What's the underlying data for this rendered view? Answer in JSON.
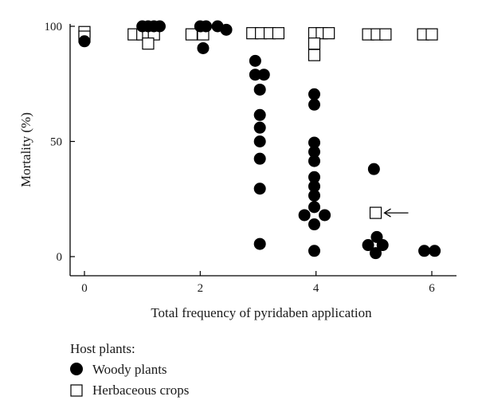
{
  "chart_data": {
    "type": "scatter",
    "title": "",
    "xlabel": "Total frequency of pyridaben application",
    "ylabel": "Mortality (%)",
    "xlim": [
      -0.2,
      6.4
    ],
    "ylim": [
      -8,
      100
    ],
    "xticks": [
      0,
      2,
      4,
      6
    ],
    "yticks": [
      0,
      50,
      100
    ],
    "grid": false,
    "legend": {
      "title": "Host plants:",
      "placement": "bottom-left",
      "entries": [
        "Woody plants",
        "Herbaceous crops"
      ]
    },
    "series": [
      {
        "name": "Woody plants",
        "marker": "filled-circle",
        "color": "#000000",
        "points": [
          [
            0,
            93.5
          ],
          [
            1,
            100
          ],
          [
            1.1,
            100
          ],
          [
            1.2,
            100
          ],
          [
            1.3,
            100
          ],
          [
            2,
            100
          ],
          [
            2.1,
            100
          ],
          [
            2.3,
            100
          ],
          [
            2.45,
            98.5
          ],
          [
            2.05,
            90.5
          ],
          [
            2.95,
            85
          ],
          [
            2.95,
            79
          ],
          [
            3.1,
            79
          ],
          [
            3.03,
            72.5
          ],
          [
            3.03,
            61.5
          ],
          [
            3.03,
            56
          ],
          [
            3.03,
            50
          ],
          [
            3.03,
            42.5
          ],
          [
            3.03,
            29.5
          ],
          [
            3.03,
            5.5
          ],
          [
            3.97,
            70.5
          ],
          [
            3.97,
            66
          ],
          [
            3.97,
            49.5
          ],
          [
            3.97,
            45.5
          ],
          [
            3.97,
            41.5
          ],
          [
            3.97,
            34.5
          ],
          [
            3.97,
            30.5
          ],
          [
            3.97,
            26.5
          ],
          [
            3.97,
            21.5
          ],
          [
            3.8,
            18
          ],
          [
            4.15,
            18
          ],
          [
            3.97,
            14
          ],
          [
            3.97,
            2.5
          ],
          [
            5,
            38
          ],
          [
            4.9,
            5
          ],
          [
            5.05,
            8.5
          ],
          [
            5.15,
            5
          ],
          [
            5.03,
            1.5
          ],
          [
            5.87,
            2.5
          ],
          [
            6.05,
            2.5
          ]
        ]
      },
      {
        "name": "Herbaceous crops",
        "marker": "open-square",
        "color": "#000000",
        "points": [
          [
            0,
            97.5
          ],
          [
            0,
            95.5
          ],
          [
            0.85,
            96.5
          ],
          [
            1.0,
            96.5
          ],
          [
            1.1,
            96.5
          ],
          [
            1.2,
            96.5
          ],
          [
            1.1,
            92.5
          ],
          [
            1.85,
            96.5
          ],
          [
            2.05,
            96.5
          ],
          [
            2.9,
            97
          ],
          [
            3.05,
            97
          ],
          [
            3.2,
            97
          ],
          [
            3.35,
            97
          ],
          [
            3.97,
            97
          ],
          [
            4.1,
            97
          ],
          [
            4.22,
            97
          ],
          [
            3.97,
            92.5
          ],
          [
            3.97,
            87.5
          ],
          [
            4.9,
            96.5
          ],
          [
            5.05,
            96.5
          ],
          [
            5.2,
            96.5
          ],
          [
            5.85,
            96.5
          ],
          [
            6.0,
            96.5
          ],
          [
            5.03,
            19
          ]
        ]
      }
    ],
    "annotations": [
      {
        "type": "arrow",
        "text": "←",
        "points_to": [
          5.03,
          19
        ]
      }
    ]
  }
}
